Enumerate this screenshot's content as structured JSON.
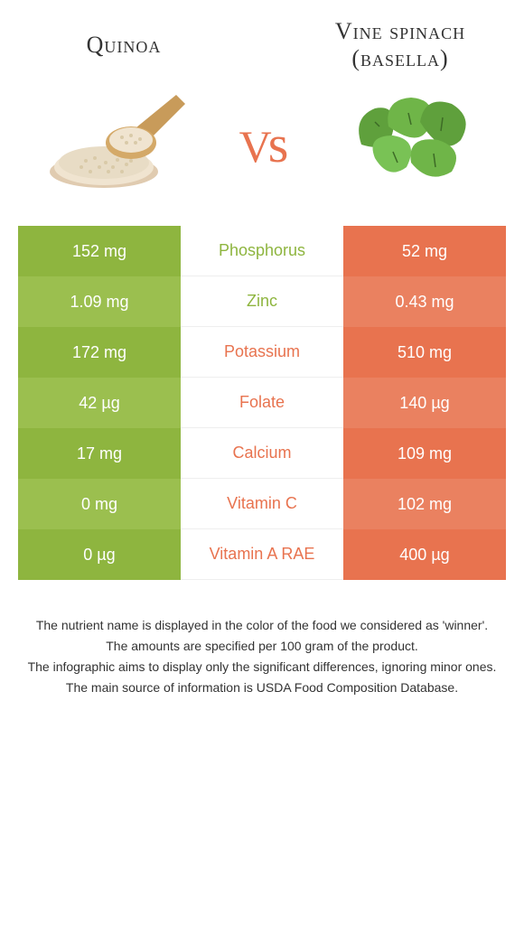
{
  "foods": {
    "left": {
      "name": "Quinoa"
    },
    "right": {
      "name": "Vine spinach (basella)"
    }
  },
  "vs": "vs",
  "colors": {
    "left_a": "#8eb53f",
    "left_b": "#9bbf4f",
    "right_a": "#e8734f",
    "right_b": "#ea8160",
    "mid_green": "#8eb53f",
    "mid_orange": "#e8734f"
  },
  "nutrients": [
    {
      "name": "Phosphorus",
      "left": "152 mg",
      "right": "52 mg",
      "winner": "left"
    },
    {
      "name": "Zinc",
      "left": "1.09 mg",
      "right": "0.43 mg",
      "winner": "left"
    },
    {
      "name": "Potassium",
      "left": "172 mg",
      "right": "510 mg",
      "winner": "right"
    },
    {
      "name": "Folate",
      "left": "42 µg",
      "right": "140 µg",
      "winner": "right"
    },
    {
      "name": "Calcium",
      "left": "17 mg",
      "right": "109 mg",
      "winner": "right"
    },
    {
      "name": "Vitamin C",
      "left": "0 mg",
      "right": "102 mg",
      "winner": "right"
    },
    {
      "name": "Vitamin A RAE",
      "left": "0 µg",
      "right": "400 µg",
      "winner": "right"
    }
  ],
  "footer": [
    "The nutrient name is displayed in the color of the food we considered as 'winner'.",
    "The amounts are specified per 100 gram of the product.",
    "The infographic aims to display only the significant differences, ignoring minor ones.",
    "The main source of information is USDA Food Composition Database."
  ]
}
